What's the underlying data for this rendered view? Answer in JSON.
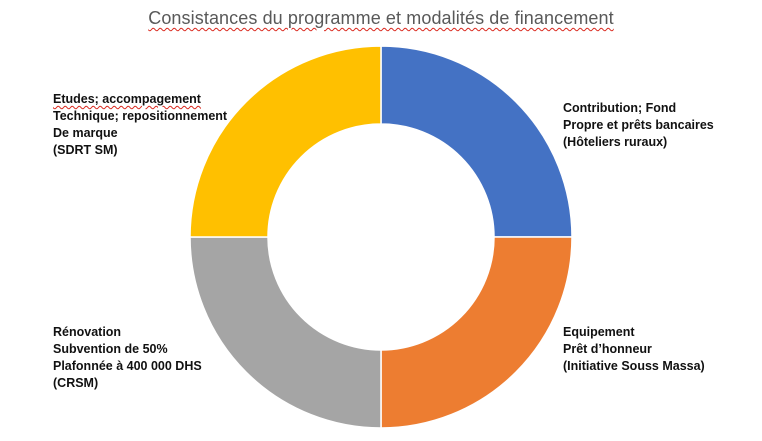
{
  "chart_data": {
    "type": "pie",
    "variant": "donut",
    "title": "Consistances du programme et modalités de financement",
    "categories": [
      "Contribution; Fond Propre et prêts bancaires (Hôteliers ruraux)",
      "Equipement Prêt d’honneur (Initiative Souss Massa)",
      "Rénovation Subvention de 50% Plafonnée à 400 000 DHS (CRSM)",
      "Etudes; accompagement Technique; repositionnement De marque (SDRT SM)"
    ],
    "values": [
      25,
      25,
      25,
      25
    ],
    "colors": [
      "#4472C4",
      "#ED7D31",
      "#A5A5A5",
      "#FFC000"
    ],
    "legend": "none",
    "slice_labels": {
      "top_right": [
        "Contribution; Fond",
        "Propre et prêts bancaires",
        "(Hôteliers ruraux)"
      ],
      "bottom_right": [
        "Equipement",
        "Prêt d’honneur",
        "(Initiative Souss Massa)"
      ],
      "bottom_left": [
        "Rénovation",
        "Subvention de 50%",
        "Plafonnée à 400 000 DHS",
        "(CRSM)"
      ],
      "top_left": [
        "Etudes; accompagement",
        "Technique; repositionnement",
        "De marque",
        "(SDRT SM)"
      ]
    }
  }
}
